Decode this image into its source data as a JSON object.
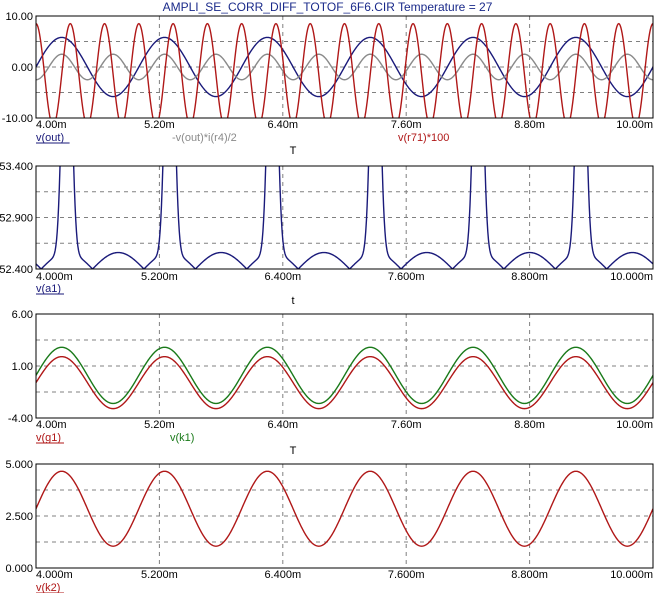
{
  "title": "AMPLI_SE_CORR_DIFF_TOTOF_6F6.CIR Temperature = 27",
  "colors": {
    "navy": "#1a1a7a",
    "red": "#b01818",
    "gray": "#8a8a8a",
    "green": "#1a7a1a",
    "grid": "#808080"
  },
  "chart_data": [
    {
      "type": "line",
      "ylim": [
        -10,
        10
      ],
      "yticks": [
        "10.00",
        "0.00",
        "-10.00"
      ],
      "xticks": [
        "4.00m",
        "5.20m",
        "6.40m",
        "7.60m",
        "8.80m",
        "10.00m"
      ],
      "x_axis_label": "T",
      "legend": [
        {
          "text": "v(out)",
          "color": "navy"
        },
        {
          "text": "-v(out)*i(r4)/2",
          "color": "gray"
        },
        {
          "text": "v(r71)*100",
          "color": "red"
        }
      ],
      "series": [
        {
          "name": "v(out)",
          "color": "navy",
          "func": "sin",
          "amplitude": 5.8,
          "offset": 0,
          "freq_per_ms": 1.0,
          "phase_deg": 0
        },
        {
          "name": "-v(out)*i(r4)/2",
          "color": "gray",
          "func": "sin",
          "amplitude": 2.5,
          "offset": 0,
          "freq_per_ms": 2.0,
          "phase_deg": -90
        },
        {
          "name": "v(r71)*100",
          "color": "red",
          "func": "sin",
          "amplitude": 10.0,
          "offset": -1.5,
          "freq_per_ms": 3.0,
          "phase_deg": 90
        }
      ]
    },
    {
      "type": "line",
      "ylim": [
        52.4,
        53.4
      ],
      "yticks": [
        "53.400",
        "52.900",
        "52.400"
      ],
      "xticks": [
        "4.000m",
        "5.200m",
        "6.400m",
        "7.600m",
        "8.800m",
        "10.000m"
      ],
      "x_axis_label": "t",
      "legend": [
        {
          "text": "v(a1)",
          "color": "navy"
        }
      ],
      "series": [
        {
          "name": "v(a1)",
          "color": "navy",
          "func": "abs-ripple",
          "offset": 52.4,
          "lobe": 0.1,
          "spike": 1.2,
          "freq_per_ms": 1.0
        }
      ]
    },
    {
      "type": "line",
      "ylim": [
        -4,
        6
      ],
      "yticks": [
        "6.00",
        "1.00",
        "-4.00"
      ],
      "xticks": [
        "4.00m",
        "5.20m",
        "6.40m",
        "7.60m",
        "8.80m",
        "10.00m"
      ],
      "x_axis_label": "T",
      "legend": [
        {
          "text": "v(g1)",
          "color": "red"
        },
        {
          "text": "v(k1)",
          "color": "green"
        }
      ],
      "series": [
        {
          "name": "v(k1)",
          "color": "green",
          "func": "sin",
          "amplitude": 2.7,
          "offset": 0.1,
          "freq_per_ms": 1.0,
          "phase_deg": 0
        },
        {
          "name": "v(g1)",
          "color": "red",
          "func": "sin",
          "amplitude": 2.5,
          "offset": -0.6,
          "freq_per_ms": 1.0,
          "phase_deg": 0
        }
      ]
    },
    {
      "type": "line",
      "ylim": [
        0,
        5
      ],
      "yticks": [
        "5.000",
        "2.500",
        "0.000"
      ],
      "xticks": [
        "4.000m",
        "5.200m",
        "6.400m",
        "7.600m",
        "8.800m",
        "10.000m"
      ],
      "x_axis_label": "",
      "legend": [
        {
          "text": "v(k2)",
          "color": "red"
        }
      ],
      "series": [
        {
          "name": "v(k2)",
          "color": "red",
          "func": "sin",
          "amplitude": 1.8,
          "offset": 2.85,
          "freq_per_ms": 1.0,
          "phase_deg": 0
        }
      ]
    }
  ],
  "x_range_ms": [
    4.0,
    10.0
  ]
}
